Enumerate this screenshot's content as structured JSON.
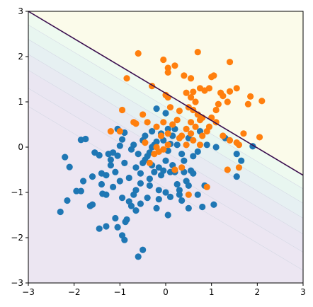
{
  "chart_data": {
    "type": "scatter",
    "title": "",
    "xlabel": "",
    "ylabel": "",
    "xlim": [
      -3,
      3
    ],
    "ylim": [
      -3,
      3
    ],
    "x_ticks": [
      "−3",
      "−2",
      "−1",
      "0",
      "1",
      "2",
      "3"
    ],
    "y_ticks": [
      "−3",
      "−2",
      "−1",
      "0",
      "1",
      "2",
      "3"
    ],
    "grid": false,
    "legend": "none",
    "decision_boundary": {
      "description": "dark purple line from (-3, 3) to (3, -0.62)",
      "points": [
        [
          -3,
          3
        ],
        [
          3,
          -0.62
        ]
      ],
      "color": "#3b0f4f"
    },
    "background_regions": {
      "above_boundary_color": "#fbfbea",
      "below_boundary_color": "#ece6f2"
    },
    "series": [
      {
        "color": "#1f77b4",
        "points": [
          [
            -2.3,
            -1.43
          ],
          [
            -2.15,
            -1.18
          ],
          [
            -2.2,
            -0.22
          ],
          [
            -2.1,
            -0.44
          ],
          [
            -1.95,
            -0.97
          ],
          [
            -1.85,
            -0.97
          ],
          [
            -1.85,
            0.16
          ],
          [
            -1.75,
            0.18
          ],
          [
            -1.8,
            -0.75
          ],
          [
            -1.65,
            -1.3
          ],
          [
            -1.6,
            -1.27
          ],
          [
            -1.6,
            -0.65
          ],
          [
            -1.55,
            -0.12
          ],
          [
            -1.45,
            -0.18
          ],
          [
            -1.4,
            -0.58
          ],
          [
            -1.4,
            -0.82
          ],
          [
            -1.38,
            -1.03
          ],
          [
            -1.3,
            -0.62
          ],
          [
            -1.25,
            -0.15
          ],
          [
            -1.2,
            -0.28
          ],
          [
            -1.2,
            -0.4
          ],
          [
            -1.15,
            -0.12
          ],
          [
            -1.1,
            -0.55
          ],
          [
            -1.05,
            -0.19
          ],
          [
            -1.0,
            0.03
          ],
          [
            -0.95,
            0.17
          ],
          [
            -0.95,
            -1.12
          ],
          [
            -0.9,
            0.32
          ],
          [
            -0.88,
            -1.65
          ],
          [
            -0.85,
            -1.6
          ],
          [
            -0.8,
            -0.68
          ],
          [
            -0.75,
            -1.3
          ],
          [
            -0.7,
            -1.05
          ],
          [
            -0.65,
            -0.95
          ],
          [
            -0.55,
            -0.58
          ],
          [
            -0.5,
            -0.35
          ],
          [
            -0.45,
            -0.28
          ],
          [
            -0.4,
            -0.2
          ],
          [
            -0.35,
            -0.12
          ],
          [
            -0.3,
            0.0
          ],
          [
            -0.25,
            0.05
          ],
          [
            -0.2,
            0.12
          ],
          [
            -0.15,
            -0.45
          ],
          [
            -0.1,
            -0.62
          ],
          [
            -0.05,
            -0.52
          ],
          [
            0.0,
            -0.3
          ],
          [
            0.05,
            -0.08
          ],
          [
            0.1,
            0.07
          ],
          [
            0.15,
            -0.4
          ],
          [
            0.2,
            -0.55
          ],
          [
            0.25,
            -0.82
          ],
          [
            0.3,
            -1.05
          ],
          [
            0.35,
            -1.18
          ],
          [
            0.4,
            -0.55
          ],
          [
            0.45,
            -0.75
          ],
          [
            0.5,
            -1.35
          ],
          [
            0.55,
            -0.52
          ],
          [
            0.6,
            -0.58
          ],
          [
            0.7,
            -1.05
          ],
          [
            0.8,
            -1.32
          ],
          [
            0.85,
            -0.85
          ],
          [
            1.05,
            -1.27
          ],
          [
            1.1,
            0.0
          ],
          [
            1.3,
            0.2
          ],
          [
            1.55,
            -0.15
          ],
          [
            1.65,
            -0.3
          ],
          [
            1.55,
            -0.65
          ],
          [
            1.9,
            0.02
          ],
          [
            -0.5,
            -2.27
          ],
          [
            -0.6,
            -2.42
          ],
          [
            -0.9,
            -2.05
          ],
          [
            -0.95,
            -1.95
          ],
          [
            -1.05,
            -1.77
          ],
          [
            -1.3,
            -1.75
          ],
          [
            -1.45,
            -1.8
          ],
          [
            -1.1,
            -1.57
          ],
          [
            -0.65,
            -1.4
          ],
          [
            -0.55,
            -1.25
          ],
          [
            -0.4,
            -1.12
          ],
          [
            -0.35,
            -0.85
          ],
          [
            -0.2,
            -1.35
          ],
          [
            -0.15,
            -1.15
          ],
          [
            0.1,
            -1.1
          ],
          [
            0.0,
            -1.0
          ],
          [
            -0.25,
            -0.55
          ],
          [
            -0.1,
            0.3
          ],
          [
            0.05,
            0.4
          ],
          [
            0.0,
            0.75
          ],
          [
            -0.3,
            0.35
          ],
          [
            -0.45,
            0.25
          ],
          [
            -0.7,
            0.05
          ],
          [
            -0.75,
            -0.05
          ],
          [
            -0.6,
            -0.15
          ],
          [
            -0.35,
            -0.7
          ],
          [
            0.15,
            0.25
          ],
          [
            0.25,
            0.05
          ],
          [
            0.35,
            -0.15
          ],
          [
            0.6,
            -0.2
          ],
          [
            0.7,
            -0.1
          ],
          [
            -1.05,
            0.4
          ],
          [
            -0.9,
            -0.35
          ],
          [
            -1.15,
            -0.88
          ],
          [
            -0.8,
            -1.2
          ],
          [
            -0.55,
            -0.8
          ],
          [
            0.1,
            -0.55
          ],
          [
            0.4,
            -0.3
          ],
          [
            0.5,
            0.2
          ],
          [
            0.75,
            0.35
          ],
          [
            0.9,
            0.05
          ],
          [
            -0.2,
            0.85
          ],
          [
            -1.3,
            -1.05
          ],
          [
            -0.15,
            -0.95
          ],
          [
            0.05,
            -1.5
          ],
          [
            0.3,
            -0.95
          ],
          [
            -0.5,
            0.15
          ],
          [
            -0.05,
            0.15
          ],
          [
            0.2,
            0.4
          ],
          [
            -0.65,
            -0.45
          ],
          [
            -1.0,
            -0.75
          ],
          [
            -0.3,
            -0.4
          ],
          [
            0.5,
            -0.85
          ]
        ]
      },
      {
        "color": "#ff7f0e",
        "points": [
          [
            -0.6,
            2.07
          ],
          [
            -0.05,
            1.93
          ],
          [
            0.05,
            1.75
          ],
          [
            0.05,
            1.65
          ],
          [
            0.2,
            1.8
          ],
          [
            0.7,
            2.1
          ],
          [
            1.4,
            1.88
          ],
          [
            -0.85,
            1.52
          ],
          [
            -0.3,
            1.35
          ],
          [
            0.4,
            1.58
          ],
          [
            0.55,
            1.52
          ],
          [
            0.6,
            1.22
          ],
          [
            0.75,
            1.3
          ],
          [
            0.85,
            1.25
          ],
          [
            0.95,
            1.3
          ],
          [
            1.0,
            1.55
          ],
          [
            1.05,
            1.58
          ],
          [
            1.2,
            1.2
          ],
          [
            1.25,
            1.13
          ],
          [
            1.4,
            1.23
          ],
          [
            1.55,
            1.3
          ],
          [
            1.8,
            0.95
          ],
          [
            1.85,
            1.12
          ],
          [
            2.1,
            1.02
          ],
          [
            0.0,
            1.15
          ],
          [
            0.05,
            1.1
          ],
          [
            0.1,
            0.88
          ],
          [
            0.45,
            1.2
          ],
          [
            0.55,
            1.1
          ],
          [
            0.65,
            1.0
          ],
          [
            0.5,
            0.88
          ],
          [
            0.6,
            0.82
          ],
          [
            0.7,
            0.72
          ],
          [
            0.8,
            0.65
          ],
          [
            0.95,
            0.45
          ],
          [
            1.0,
            0.65
          ],
          [
            1.1,
            0.55
          ],
          [
            1.15,
            0.95
          ],
          [
            1.35,
            1.0
          ],
          [
            -0.95,
            0.82
          ],
          [
            -0.65,
            0.52
          ],
          [
            -0.5,
            0.72
          ],
          [
            -0.4,
            0.55
          ],
          [
            -0.2,
            0.45
          ],
          [
            -0.1,
            0.25
          ],
          [
            0.05,
            0.3
          ],
          [
            0.15,
            0.5
          ],
          [
            0.25,
            0.6
          ],
          [
            0.35,
            0.25
          ],
          [
            0.45,
            0.4
          ],
          [
            0.55,
            0.3
          ],
          [
            0.65,
            0.45
          ],
          [
            0.75,
            0.6
          ],
          [
            0.8,
            0.25
          ],
          [
            0.6,
            0.15
          ],
          [
            0.45,
            0.05
          ],
          [
            0.3,
            0.2
          ],
          [
            0.05,
            0.05
          ],
          [
            -0.05,
            -0.05
          ],
          [
            -0.25,
            -0.15
          ],
          [
            -0.35,
            -0.35
          ],
          [
            -0.15,
            -0.1
          ],
          [
            0.2,
            -0.5
          ],
          [
            0.35,
            -0.45
          ],
          [
            -1.2,
            0.35
          ],
          [
            -1.0,
            0.35
          ],
          [
            -0.7,
            0.55
          ],
          [
            -0.45,
            0.1
          ],
          [
            -0.2,
            0.0
          ],
          [
            1.25,
            0.25
          ],
          [
            1.4,
            0.15
          ],
          [
            1.7,
            0.3
          ],
          [
            1.6,
            0.05
          ],
          [
            2.05,
            0.22
          ],
          [
            1.35,
            -0.5
          ],
          [
            1.6,
            -0.45
          ],
          [
            0.9,
            -0.88
          ],
          [
            0.5,
            -1.05
          ],
          [
            0.3,
            0.8
          ],
          [
            0.9,
            0.35
          ],
          [
            0.75,
            0.05
          ],
          [
            1.55,
            0.1
          ],
          [
            0.55,
            0.55
          ],
          [
            -0.05,
            0.55
          ],
          [
            1.1,
            0.82
          ]
        ]
      }
    ]
  }
}
